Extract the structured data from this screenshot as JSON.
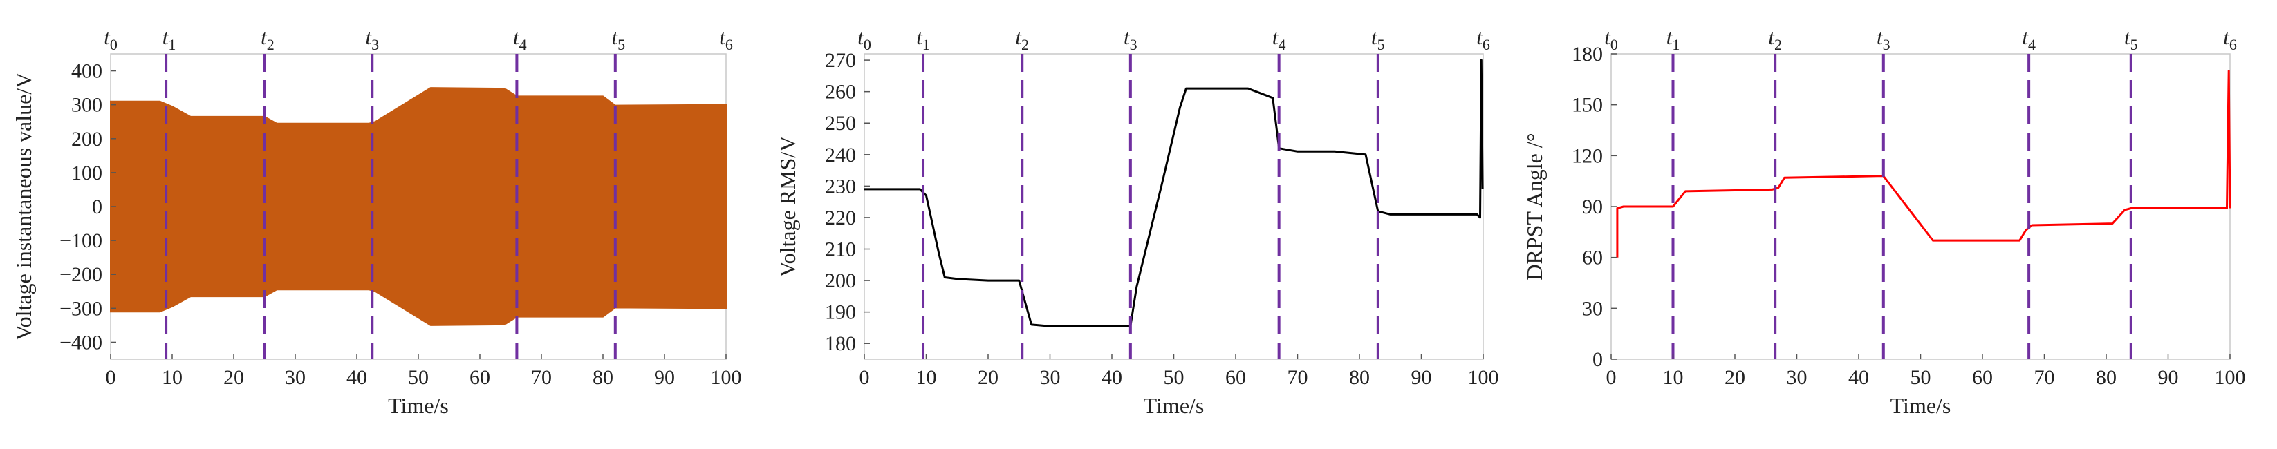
{
  "chart_data": [
    {
      "type": "area",
      "title": "",
      "xlabel": "Time/s",
      "ylabel": "Voltage instantaneous value/V",
      "xlim": [
        0,
        100
      ],
      "ylim": [
        -450,
        450
      ],
      "xticks": [
        0,
        10,
        20,
        30,
        40,
        50,
        60,
        70,
        80,
        90,
        100
      ],
      "yticks": [
        -400,
        -300,
        -200,
        -100,
        0,
        100,
        200,
        300,
        400
      ],
      "grid": false,
      "legend": "none",
      "series": [
        {
          "color": "#C55A11",
          "style": "oscillating envelope (±peak)",
          "x": [
            0,
            8,
            10,
            13,
            25,
            27,
            42,
            43,
            52,
            64,
            66,
            80,
            82,
            100
          ],
          "upper": [
            310,
            310,
            295,
            265,
            265,
            245,
            245,
            250,
            350,
            348,
            325,
            325,
            298,
            300
          ],
          "lower": [
            -310,
            -310,
            -295,
            -265,
            -265,
            -245,
            -245,
            -250,
            -350,
            -348,
            -325,
            -325,
            -298,
            -300
          ]
        }
      ],
      "markers": {
        "x": [
          9,
          25,
          42.5,
          66,
          82
        ],
        "color": "#7030A0",
        "top_labels_x": [
          0,
          9.5,
          25.5,
          42.5,
          66.5,
          82.5,
          100
        ],
        "top_labels": [
          {
            "base": "t",
            "sub": "0"
          },
          {
            "base": "t",
            "sub": "1"
          },
          {
            "base": "t",
            "sub": "2"
          },
          {
            "base": "t",
            "sub": "3"
          },
          {
            "base": "t",
            "sub": "4"
          },
          {
            "base": "t",
            "sub": "5"
          },
          {
            "base": "t",
            "sub": "6"
          }
        ]
      }
    },
    {
      "type": "line",
      "title": "",
      "xlabel": "Time/s",
      "ylabel": "Voltage RMS/V",
      "xlim": [
        0,
        100
      ],
      "ylim": [
        175,
        272
      ],
      "xticks": [
        0,
        10,
        20,
        30,
        40,
        50,
        60,
        70,
        80,
        90,
        100
      ],
      "yticks": [
        180,
        190,
        200,
        210,
        220,
        230,
        240,
        250,
        260,
        270
      ],
      "grid": false,
      "legend": "none",
      "series": [
        {
          "color": "#000000",
          "x": [
            0,
            5,
            9,
            10,
            11,
            12,
            13,
            15,
            20,
            25,
            26,
            27,
            30,
            35,
            40,
            43,
            44,
            48,
            51,
            52,
            56,
            62,
            66,
            67,
            70,
            76,
            81,
            82,
            83,
            85,
            90,
            99,
            99.5,
            99.7,
            99.9
          ],
          "y": [
            229,
            229,
            229,
            227,
            218,
            209,
            201,
            200.5,
            200,
            200,
            193,
            186,
            185.5,
            185.5,
            185.5,
            185.5,
            198,
            230,
            255,
            261,
            261,
            261,
            258,
            242,
            241,
            241,
            240,
            231,
            222,
            221,
            221,
            221,
            220,
            270,
            229
          ]
        }
      ],
      "markers": {
        "x": [
          9.5,
          25.5,
          43,
          67,
          83
        ],
        "color": "#7030A0",
        "top_labels_x": [
          0,
          9.5,
          25.5,
          43,
          67,
          83,
          100
        ],
        "top_labels": [
          {
            "base": "t",
            "sub": "0"
          },
          {
            "base": "t",
            "sub": "1"
          },
          {
            "base": "t",
            "sub": "2"
          },
          {
            "base": "t",
            "sub": "3"
          },
          {
            "base": "t",
            "sub": "4"
          },
          {
            "base": "t",
            "sub": "5"
          },
          {
            "base": "t",
            "sub": "6"
          }
        ]
      }
    },
    {
      "type": "line",
      "title": "",
      "xlabel": "Time/s",
      "ylabel": "DRPST Angle /°",
      "xlim": [
        0,
        100
      ],
      "ylim": [
        0,
        180
      ],
      "xticks": [
        0,
        10,
        20,
        30,
        40,
        50,
        60,
        70,
        80,
        90,
        100
      ],
      "yticks": [
        0,
        30,
        60,
        90,
        120,
        150,
        180
      ],
      "grid": false,
      "legend": "none",
      "series": [
        {
          "color": "#FF0000",
          "x": [
            1,
            1,
            2,
            10,
            12,
            26,
            27,
            28,
            43,
            44,
            52,
            60,
            66,
            67,
            68,
            81,
            83,
            84,
            99.5,
            99.8,
            100
          ],
          "y": [
            60,
            89,
            90,
            90,
            99,
            100,
            101,
            107,
            108,
            108,
            70,
            70,
            70,
            76,
            79,
            80,
            88,
            89,
            89,
            170,
            89
          ]
        }
      ],
      "markers": {
        "x": [
          10,
          26.5,
          44,
          67.5,
          84
        ],
        "color": "#7030A0",
        "top_labels_x": [
          0,
          10,
          26.5,
          44,
          67.5,
          84,
          100
        ],
        "top_labels": [
          {
            "base": "t",
            "sub": "0"
          },
          {
            "base": "t",
            "sub": "1"
          },
          {
            "base": "t",
            "sub": "2"
          },
          {
            "base": "t",
            "sub": "3"
          },
          {
            "base": "t",
            "sub": "4"
          },
          {
            "base": "t",
            "sub": "5"
          },
          {
            "base": "t",
            "sub": "6"
          }
        ]
      }
    }
  ]
}
